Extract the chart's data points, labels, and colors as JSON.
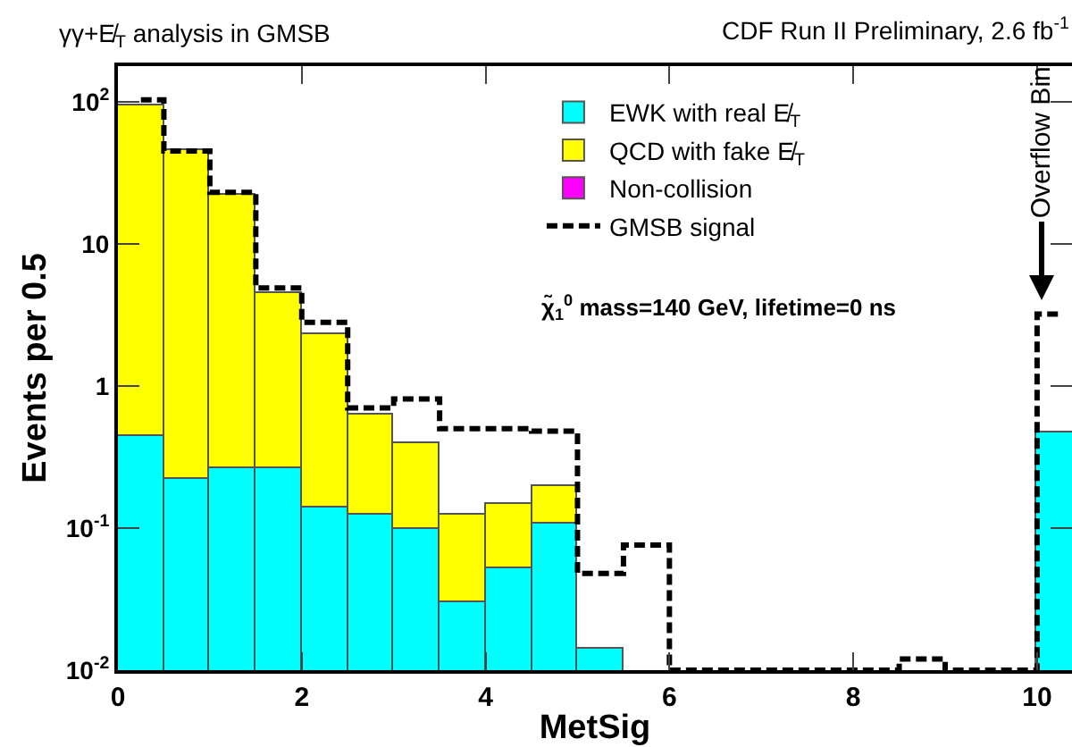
{
  "chart_data": {
    "type": "bar",
    "title": "γγ+E̸$_{T}$ analysis in GMSB",
    "xlabel": "MetSig",
    "ylabel": "Events per 0.5",
    "x": [
      0.25,
      0.75,
      1.25,
      1.75,
      2.25,
      2.75,
      3.25,
      3.75,
      4.25,
      4.75,
      5.25,
      5.75,
      6.25,
      6.75,
      7.25,
      7.75,
      8.25,
      8.75,
      9.25,
      9.75,
      10.25
    ],
    "stacked": true,
    "log": "y",
    "grid": false,
    "legend": "top right",
    "series": [
      {
        "name": "EWK with real E̸$_{T}$",
        "color": "#00ffff",
        "values": [
          0.44,
          0.22,
          0.26,
          0.26,
          0.14,
          0.123,
          0.099,
          0.03,
          0.052,
          0.108,
          0.014,
          null,
          null,
          null,
          null,
          null,
          null,
          null,
          null,
          null,
          0.47
        ]
      },
      {
        "name": "QCD with fake E̸$_{T}$",
        "color": "#ffff00",
        "values": [
          95,
          45,
          22,
          4.3,
          2.2,
          0.5,
          0.3,
          0.094,
          0.094,
          0.092,
          null,
          null,
          null,
          null,
          null,
          null,
          null,
          null,
          null,
          null,
          null
        ]
      },
      {
        "name": "Non-collision",
        "color": "#ff00ff",
        "values": [
          null,
          null,
          null,
          null,
          null,
          null,
          null,
          null,
          null,
          null,
          null,
          null,
          null,
          null,
          null,
          null,
          null,
          null,
          null,
          null,
          null
        ]
      },
      {
        "name": "GMSB signal",
        "type": "step",
        "color": "#000000",
        "line_style": "dashed",
        "values": [
          103,
          45,
          23,
          4.9,
          2.8,
          0.7,
          0.81,
          0.5,
          0.5,
          0.48,
          0.048,
          0.076,
          0.01,
          0.01,
          0.01,
          0.01,
          0.01,
          0.012,
          0.01,
          0.01,
          3.2
        ]
      }
    ],
    "xlim": [
      0,
      10.38
    ],
    "ylim": [
      0.01,
      178
    ],
    "xticks": [
      0,
      2,
      4,
      6,
      8,
      10
    ],
    "yticks": [
      {
        "value": 0.01,
        "label": "10$^{-2}$"
      },
      {
        "value": 0.1,
        "label": "10$^{-1}$"
      },
      1,
      10,
      {
        "value": 100,
        "label": "10$^{2}$"
      }
    ],
    "annotations": [
      "CDF Run II Preliminary, 2.6 fb$^{-1}$",
      "χ̃$_{1}$$^{0}$ mass=140 GeV, lifetime=0 ns",
      "Overflow Bin"
    ]
  }
}
